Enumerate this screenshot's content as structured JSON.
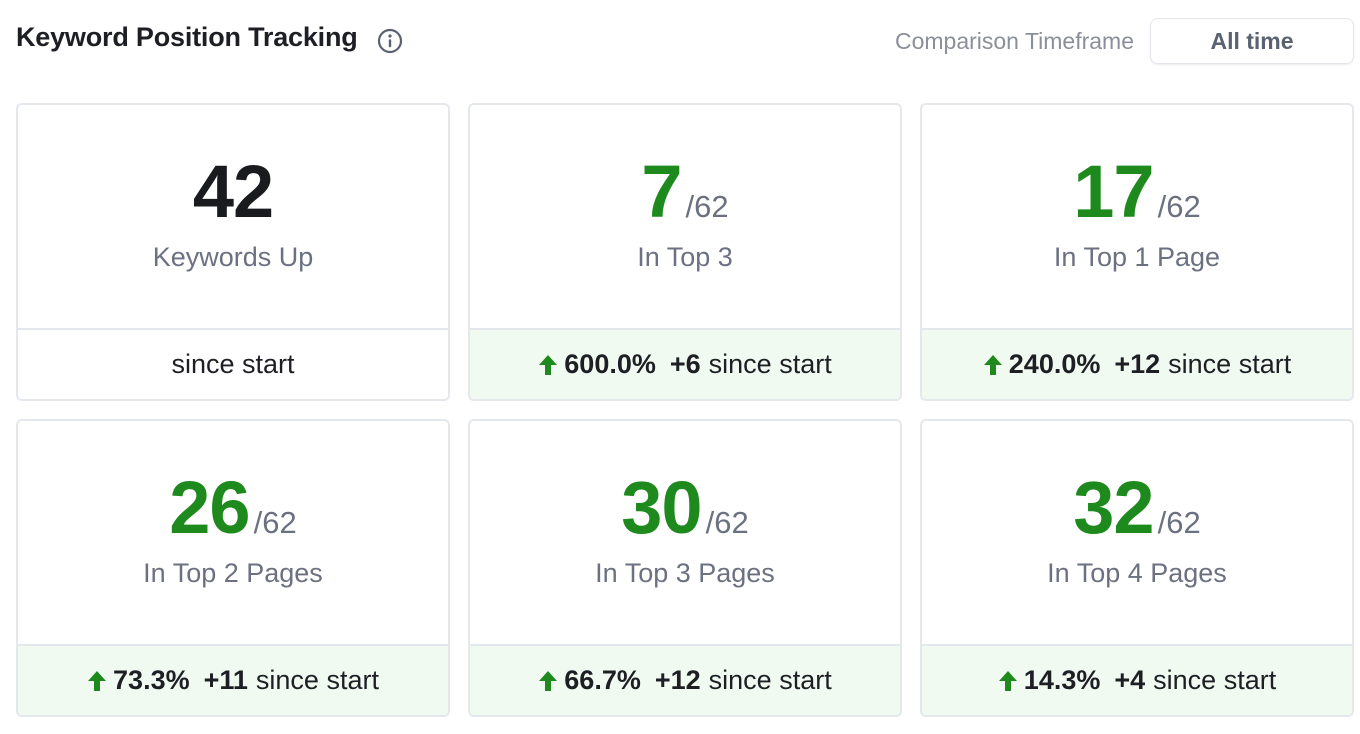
{
  "header": {
    "title": "Keyword Position Tracking",
    "timeframe_label": "Comparison Timeframe",
    "timeframe_value": "All time"
  },
  "colors": {
    "green": "#1e8a1e",
    "positive_bg": "#f1faf1",
    "muted": "#6b7180",
    "border": "#e4e7ec"
  },
  "cards": [
    {
      "value": "42",
      "total": "",
      "label": "Keywords Up",
      "footer": {
        "pct": "",
        "delta": "",
        "suffix": "since start"
      }
    },
    {
      "value": "7",
      "total": "/62",
      "label": "In Top 3",
      "footer": {
        "pct": "600.0%",
        "delta": "+6",
        "suffix": "since start"
      }
    },
    {
      "value": "17",
      "total": "/62",
      "label": "In Top 1 Page",
      "footer": {
        "pct": "240.0%",
        "delta": "+12",
        "suffix": "since start"
      }
    },
    {
      "value": "26",
      "total": "/62",
      "label": "In Top 2 Pages",
      "footer": {
        "pct": "73.3%",
        "delta": "+11",
        "suffix": "since start"
      }
    },
    {
      "value": "30",
      "total": "/62",
      "label": "In Top 3 Pages",
      "footer": {
        "pct": "66.7%",
        "delta": "+12",
        "suffix": "since start"
      }
    },
    {
      "value": "32",
      "total": "/62",
      "label": "In Top 4 Pages",
      "footer": {
        "pct": "14.3%",
        "delta": "+4",
        "suffix": "since start"
      }
    }
  ]
}
